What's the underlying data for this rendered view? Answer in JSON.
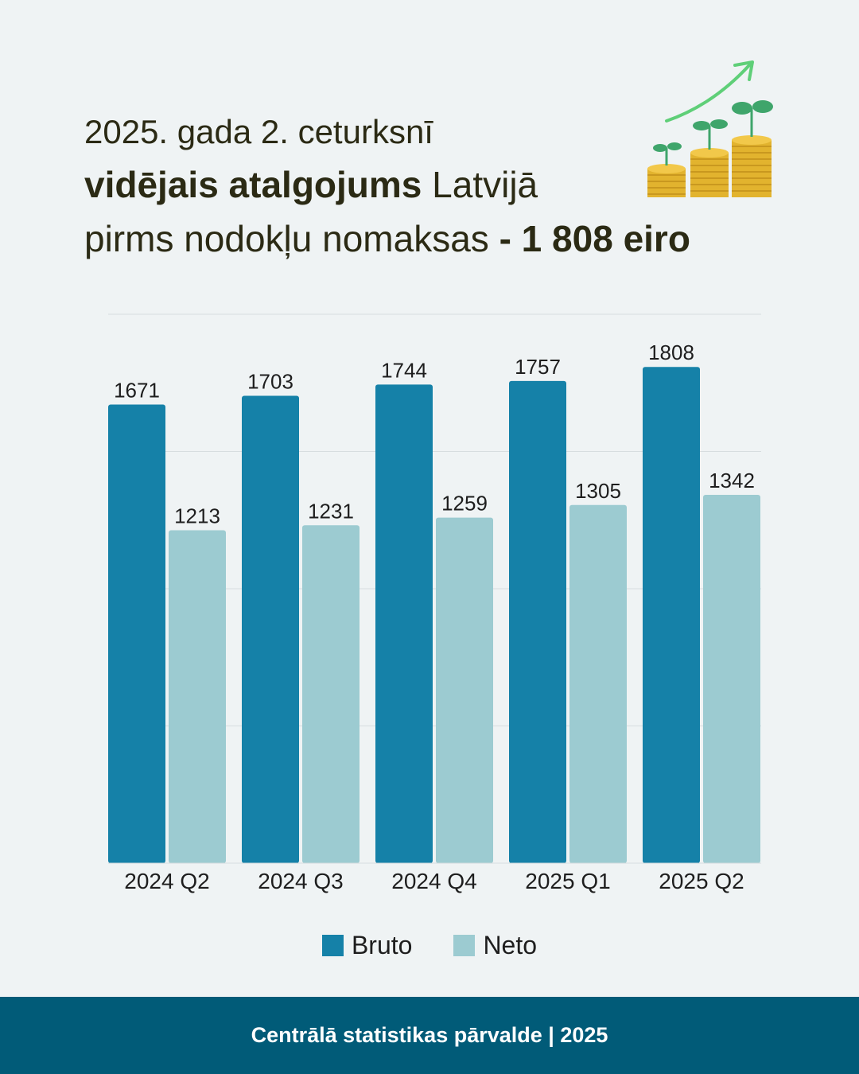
{
  "headline": {
    "line1": "2025. gada 2. ceturksnī",
    "line2_bold": "vidējais atalgojums",
    "line2_regular": " Latvijā",
    "line3_regular": "pirms nodokļu nomaksas ",
    "line3_bold": "- 1 808 eiro"
  },
  "illustration": {
    "icon": "coin-stacks-growth-icon"
  },
  "colors": {
    "bruto": "#1581a8",
    "neto": "#9ccbd1",
    "footer": "#015b78",
    "text": "#2b2a14"
  },
  "chart_data": {
    "type": "bar",
    "categories": [
      "2024 Q2",
      "2024 Q3",
      "2024 Q4",
      "2025 Q1",
      "2025 Q2"
    ],
    "series": [
      {
        "name": "Bruto",
        "values": [
          1671,
          1703,
          1744,
          1757,
          1808
        ]
      },
      {
        "name": "Neto",
        "values": [
          1213,
          1231,
          1259,
          1305,
          1342
        ]
      }
    ],
    "ylim": [
      0,
      2000
    ],
    "grid": true,
    "legend": "bottom-center"
  },
  "legend": {
    "bruto": "Bruto",
    "neto": "Neto"
  },
  "footer": {
    "text": "Centrālā statistikas pārvalde | 2025"
  }
}
